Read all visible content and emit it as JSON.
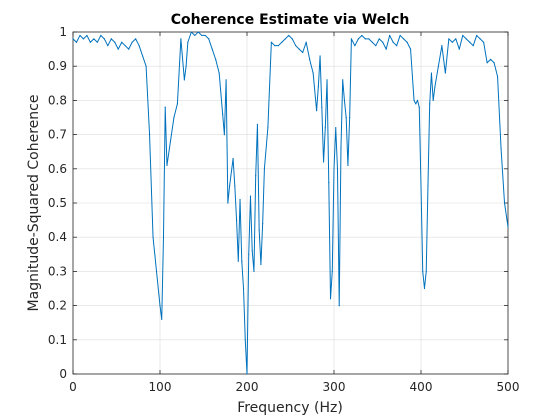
{
  "chart_data": {
    "type": "line",
    "title": "Coherence Estimate via Welch",
    "xlabel": "Frequency (Hz)",
    "ylabel": "Magnitude-Squared Coherence",
    "xlim": [
      0,
      500
    ],
    "ylim": [
      0,
      1
    ],
    "xticks": [
      0,
      100,
      200,
      300,
      400,
      500
    ],
    "yticks": [
      0,
      0.1,
      0.2,
      0.3,
      0.4,
      0.5,
      0.6,
      0.7,
      0.8,
      0.9,
      1
    ],
    "grid": true,
    "line_color": "#0072bd",
    "series": [
      {
        "x": [
          0,
          4,
          8,
          12,
          16,
          20,
          24,
          28,
          32,
          36,
          40,
          44,
          48,
          52,
          56,
          60,
          64,
          68,
          72,
          76,
          80,
          84,
          88,
          92,
          96,
          100,
          102,
          104,
          106,
          108,
          112,
          116,
          120,
          124,
          128,
          130,
          132,
          136,
          140,
          144,
          148,
          152,
          156,
          160,
          164,
          168,
          172,
          174,
          176,
          178,
          180,
          184,
          186,
          188,
          190,
          192,
          194,
          196,
          198,
          200,
          202,
          204,
          206,
          208,
          210,
          212,
          214,
          216,
          218,
          220,
          224,
          228,
          232,
          236,
          240,
          244,
          248,
          252,
          256,
          260,
          264,
          268,
          272,
          276,
          280,
          282,
          284,
          286,
          288,
          290,
          292,
          294,
          296,
          298,
          300,
          302,
          304,
          306,
          308,
          310,
          312,
          314,
          316,
          318,
          320,
          324,
          328,
          332,
          336,
          340,
          344,
          348,
          352,
          356,
          360,
          364,
          368,
          372,
          376,
          380,
          384,
          388,
          392,
          394,
          396,
          398,
          400,
          402,
          404,
          406,
          408,
          410,
          412,
          414,
          416,
          420,
          424,
          428,
          432,
          436,
          440,
          444,
          448,
          452,
          456,
          460,
          464,
          468,
          472,
          476,
          480,
          484,
          488,
          492,
          496,
          500
        ],
        "y": [
          0.98,
          0.97,
          0.99,
          0.98,
          0.99,
          0.97,
          0.98,
          0.97,
          0.99,
          0.98,
          0.96,
          0.98,
          0.97,
          0.95,
          0.97,
          0.96,
          0.95,
          0.97,
          0.98,
          0.96,
          0.93,
          0.9,
          0.7,
          0.4,
          0.3,
          0.2,
          0.16,
          0.4,
          0.78,
          0.61,
          0.68,
          0.75,
          0.79,
          0.98,
          0.86,
          0.9,
          0.97,
          1.0,
          0.99,
          1.0,
          0.99,
          0.99,
          0.98,
          0.95,
          0.92,
          0.88,
          0.76,
          0.7,
          0.86,
          0.5,
          0.55,
          0.63,
          0.55,
          0.45,
          0.33,
          0.51,
          0.33,
          0.25,
          0.1,
          0.0,
          0.35,
          0.52,
          0.36,
          0.3,
          0.58,
          0.73,
          0.42,
          0.32,
          0.44,
          0.6,
          0.72,
          0.97,
          0.96,
          0.96,
          0.97,
          0.98,
          0.99,
          0.98,
          0.96,
          0.95,
          0.94,
          0.97,
          0.92,
          0.88,
          0.77,
          0.84,
          0.93,
          0.78,
          0.62,
          0.72,
          0.86,
          0.56,
          0.22,
          0.3,
          0.6,
          0.72,
          0.6,
          0.2,
          0.66,
          0.86,
          0.8,
          0.75,
          0.61,
          0.75,
          0.98,
          0.96,
          0.98,
          0.99,
          0.98,
          0.98,
          0.97,
          0.96,
          0.98,
          0.97,
          0.95,
          0.99,
          0.97,
          0.96,
          0.99,
          0.98,
          0.97,
          0.95,
          0.8,
          0.79,
          0.8,
          0.78,
          0.55,
          0.3,
          0.25,
          0.3,
          0.55,
          0.79,
          0.88,
          0.8,
          0.84,
          0.9,
          0.96,
          0.88,
          0.98,
          0.97,
          0.98,
          0.95,
          0.99,
          0.98,
          0.97,
          0.96,
          0.99,
          0.98,
          0.97,
          0.91,
          0.92,
          0.91,
          0.87,
          0.66,
          0.5,
          0.43
        ]
      }
    ]
  }
}
